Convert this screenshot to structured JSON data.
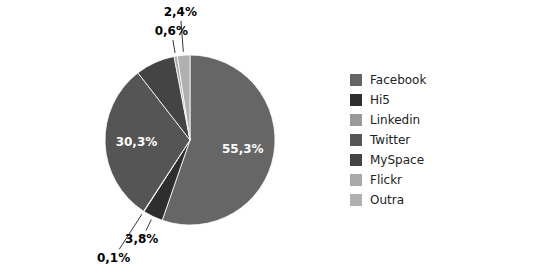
{
  "chart_data": {
    "type": "pie",
    "categories": [
      "Facebook",
      "Hi5",
      "Linkedin",
      "Twitter",
      "MySpace",
      "Flickr",
      "Outra"
    ],
    "values": [
      55.3,
      3.8,
      0.1,
      30.3,
      7.5,
      0.6,
      2.4
    ],
    "value_labels": [
      "55,3%",
      "3,8%",
      "0,1%",
      "30,3%",
      null,
      "0,6%",
      "2,4%"
    ],
    "colors": [
      "#666666",
      "#2e2e2e",
      "#999999",
      "#555555",
      "#444444",
      "#aaaaaa",
      "#b0b0b0"
    ],
    "data_labels": true,
    "legend": "right"
  }
}
